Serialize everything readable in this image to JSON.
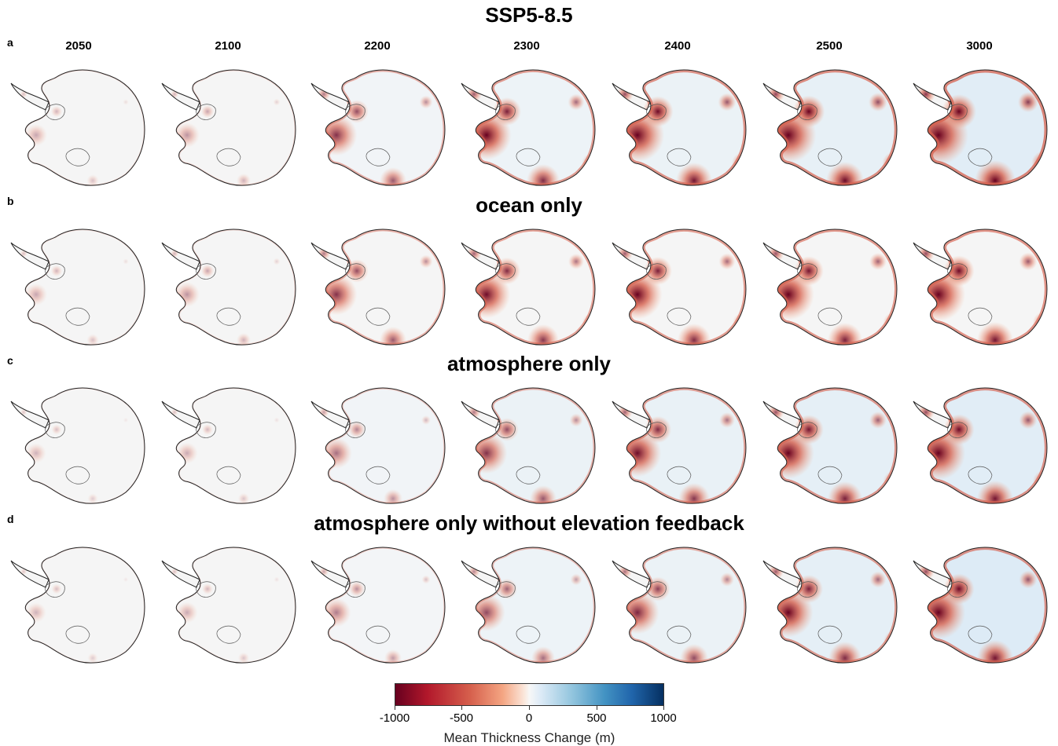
{
  "title": "SSP5-8.5",
  "years": [
    "2050",
    "2100",
    "2200",
    "2300",
    "2400",
    "2500",
    "3000"
  ],
  "rows": [
    {
      "letter": "a",
      "title": ""
    },
    {
      "letter": "b",
      "title": "ocean only"
    },
    {
      "letter": "c",
      "title": "atmosphere only"
    },
    {
      "letter": "d",
      "title": "atmosphere only without elevation feedback"
    }
  ],
  "colorbar": {
    "label": "Mean Thickness Change (m)",
    "ticks": [
      "-1000",
      "-500",
      "0",
      "500",
      "1000"
    ],
    "range": [
      -1000,
      1000
    ],
    "colors": [
      "#67001f",
      "#b2182b",
      "#d6604d",
      "#f4a582",
      "#f7f7f7",
      "#92c5de",
      "#4393c3",
      "#2166ac",
      "#053061"
    ]
  },
  "intensity": {
    "a": [
      0.08,
      0.15,
      0.55,
      0.75,
      0.85,
      0.9,
      1.0
    ],
    "b": [
      0.08,
      0.15,
      0.55,
      0.7,
      0.75,
      0.8,
      0.85
    ],
    "c": [
      0.03,
      0.06,
      0.3,
      0.55,
      0.7,
      0.8,
      0.85
    ],
    "d": [
      0.03,
      0.06,
      0.25,
      0.45,
      0.6,
      0.75,
      0.85
    ]
  },
  "interior_blue": {
    "a": [
      0,
      0,
      0.15,
      0.25,
      0.3,
      0.4,
      0.55
    ],
    "b": [
      0,
      0,
      0,
      0,
      0,
      0,
      0
    ],
    "c": [
      0,
      0,
      0.15,
      0.3,
      0.35,
      0.45,
      0.55
    ],
    "d": [
      0,
      0,
      0.1,
      0.25,
      0.3,
      0.45,
      0.65
    ]
  }
}
